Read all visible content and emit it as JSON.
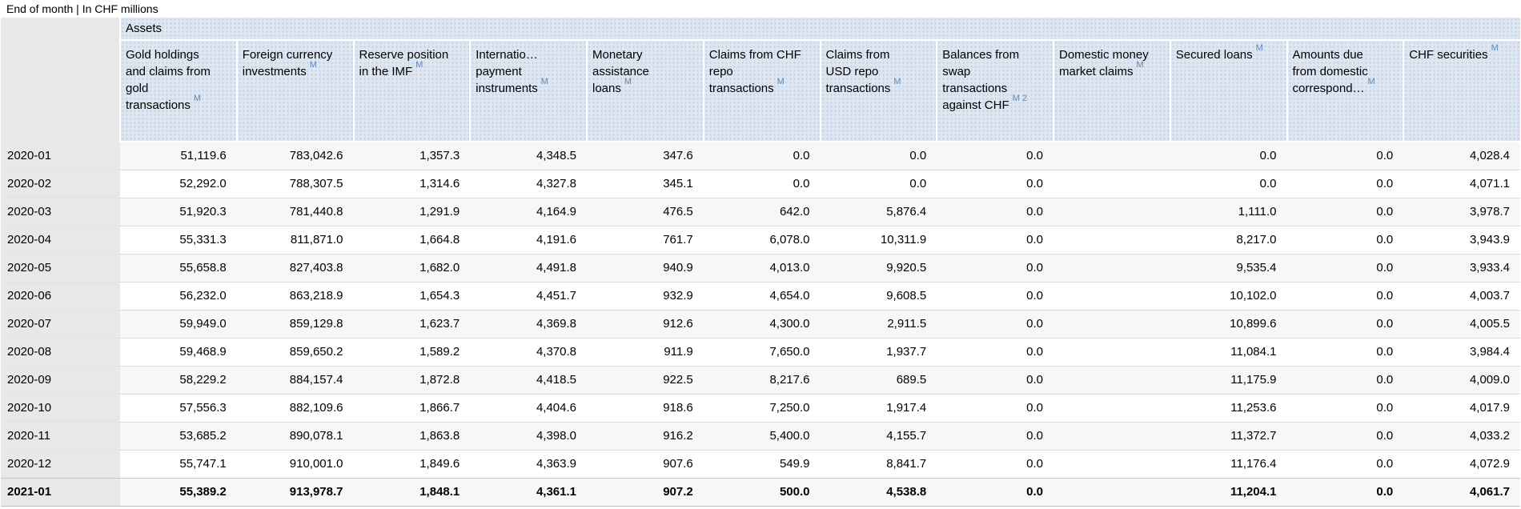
{
  "page": {
    "subtitle": "End of month | In CHF millions"
  },
  "colors": {
    "header_background": "#dee6f1",
    "row_label_background": "#e8e8e8",
    "stripe_background": "#f6f7f8",
    "metadata_link_blue": "#5d87ba"
  },
  "table": {
    "group_header": "Assets",
    "columns": [
      {
        "label": "Gold holdings and claims from gold transactions",
        "sup": "M"
      },
      {
        "label": "Foreign currency investments",
        "sup": "M"
      },
      {
        "label": "Reserve position in the IMF",
        "sup": "M"
      },
      {
        "label": "Internatio… payment instruments",
        "sup": "M"
      },
      {
        "label": "Monetary assistance loans",
        "sup": "M"
      },
      {
        "label": "Claims from CHF repo transactions",
        "sup": "M"
      },
      {
        "label": "Claims from USD repo transactions",
        "sup": "M"
      },
      {
        "label": "Balances from swap transactions against CHF",
        "sup": "M 2"
      },
      {
        "label": "Domestic money market claims",
        "sup": "M"
      },
      {
        "label": "Secured loans",
        "sup": "M"
      },
      {
        "label": "Amounts due from domestic correspond…",
        "sup": "M"
      },
      {
        "label": "CHF securities",
        "sup": "M"
      }
    ],
    "rows": [
      {
        "date": "2020-01",
        "bold": false,
        "values": [
          "51,119.6",
          "783,042.6",
          "1,357.3",
          "4,348.5",
          "347.6",
          "0.0",
          "0.0",
          "0.0",
          "",
          "0.0",
          "0.0",
          "4,028.4"
        ]
      },
      {
        "date": "2020-02",
        "bold": false,
        "values": [
          "52,292.0",
          "788,307.5",
          "1,314.6",
          "4,327.8",
          "345.1",
          "0.0",
          "0.0",
          "0.0",
          "",
          "0.0",
          "0.0",
          "4,071.1"
        ]
      },
      {
        "date": "2020-03",
        "bold": false,
        "values": [
          "51,920.3",
          "781,440.8",
          "1,291.9",
          "4,164.9",
          "476.5",
          "642.0",
          "5,876.4",
          "0.0",
          "",
          "1,111.0",
          "0.0",
          "3,978.7"
        ]
      },
      {
        "date": "2020-04",
        "bold": false,
        "values": [
          "55,331.3",
          "811,871.0",
          "1,664.8",
          "4,191.6",
          "761.7",
          "6,078.0",
          "10,311.9",
          "0.0",
          "",
          "8,217.0",
          "0.0",
          "3,943.9"
        ]
      },
      {
        "date": "2020-05",
        "bold": false,
        "values": [
          "55,658.8",
          "827,403.8",
          "1,682.0",
          "4,491.8",
          "940.9",
          "4,013.0",
          "9,920.5",
          "0.0",
          "",
          "9,535.4",
          "0.0",
          "3,933.4"
        ]
      },
      {
        "date": "2020-06",
        "bold": false,
        "values": [
          "56,232.0",
          "863,218.9",
          "1,654.3",
          "4,451.7",
          "932.9",
          "4,654.0",
          "9,608.5",
          "0.0",
          "",
          "10,102.0",
          "0.0",
          "4,003.7"
        ]
      },
      {
        "date": "2020-07",
        "bold": false,
        "values": [
          "59,949.0",
          "859,129.8",
          "1,623.7",
          "4,369.8",
          "912.6",
          "4,300.0",
          "2,911.5",
          "0.0",
          "",
          "10,899.6",
          "0.0",
          "4,005.5"
        ]
      },
      {
        "date": "2020-08",
        "bold": false,
        "values": [
          "59,468.9",
          "859,650.2",
          "1,589.2",
          "4,370.8",
          "911.9",
          "7,650.0",
          "1,937.7",
          "0.0",
          "",
          "11,084.1",
          "0.0",
          "3,984.4"
        ]
      },
      {
        "date": "2020-09",
        "bold": false,
        "values": [
          "58,229.2",
          "884,157.4",
          "1,872.8",
          "4,418.5",
          "922.5",
          "8,217.6",
          "689.5",
          "0.0",
          "",
          "11,175.9",
          "0.0",
          "4,009.0"
        ]
      },
      {
        "date": "2020-10",
        "bold": false,
        "values": [
          "57,556.3",
          "882,109.6",
          "1,866.7",
          "4,404.6",
          "918.6",
          "7,250.0",
          "1,917.4",
          "0.0",
          "",
          "11,253.6",
          "0.0",
          "4,017.9"
        ]
      },
      {
        "date": "2020-11",
        "bold": false,
        "values": [
          "53,685.2",
          "890,078.1",
          "1,863.8",
          "4,398.0",
          "916.2",
          "5,400.0",
          "4,155.7",
          "0.0",
          "",
          "11,372.7",
          "0.0",
          "4,033.2"
        ]
      },
      {
        "date": "2020-12",
        "bold": false,
        "values": [
          "55,747.1",
          "910,001.0",
          "1,849.6",
          "4,363.9",
          "907.6",
          "549.9",
          "8,841.7",
          "0.0",
          "",
          "11,176.4",
          "0.0",
          "4,072.9"
        ]
      },
      {
        "date": "2021-01",
        "bold": true,
        "values": [
          "55,389.2",
          "913,978.7",
          "1,848.1",
          "4,361.1",
          "907.2",
          "500.0",
          "4,538.8",
          "0.0",
          "",
          "11,204.1",
          "0.0",
          "4,061.7"
        ]
      }
    ]
  }
}
